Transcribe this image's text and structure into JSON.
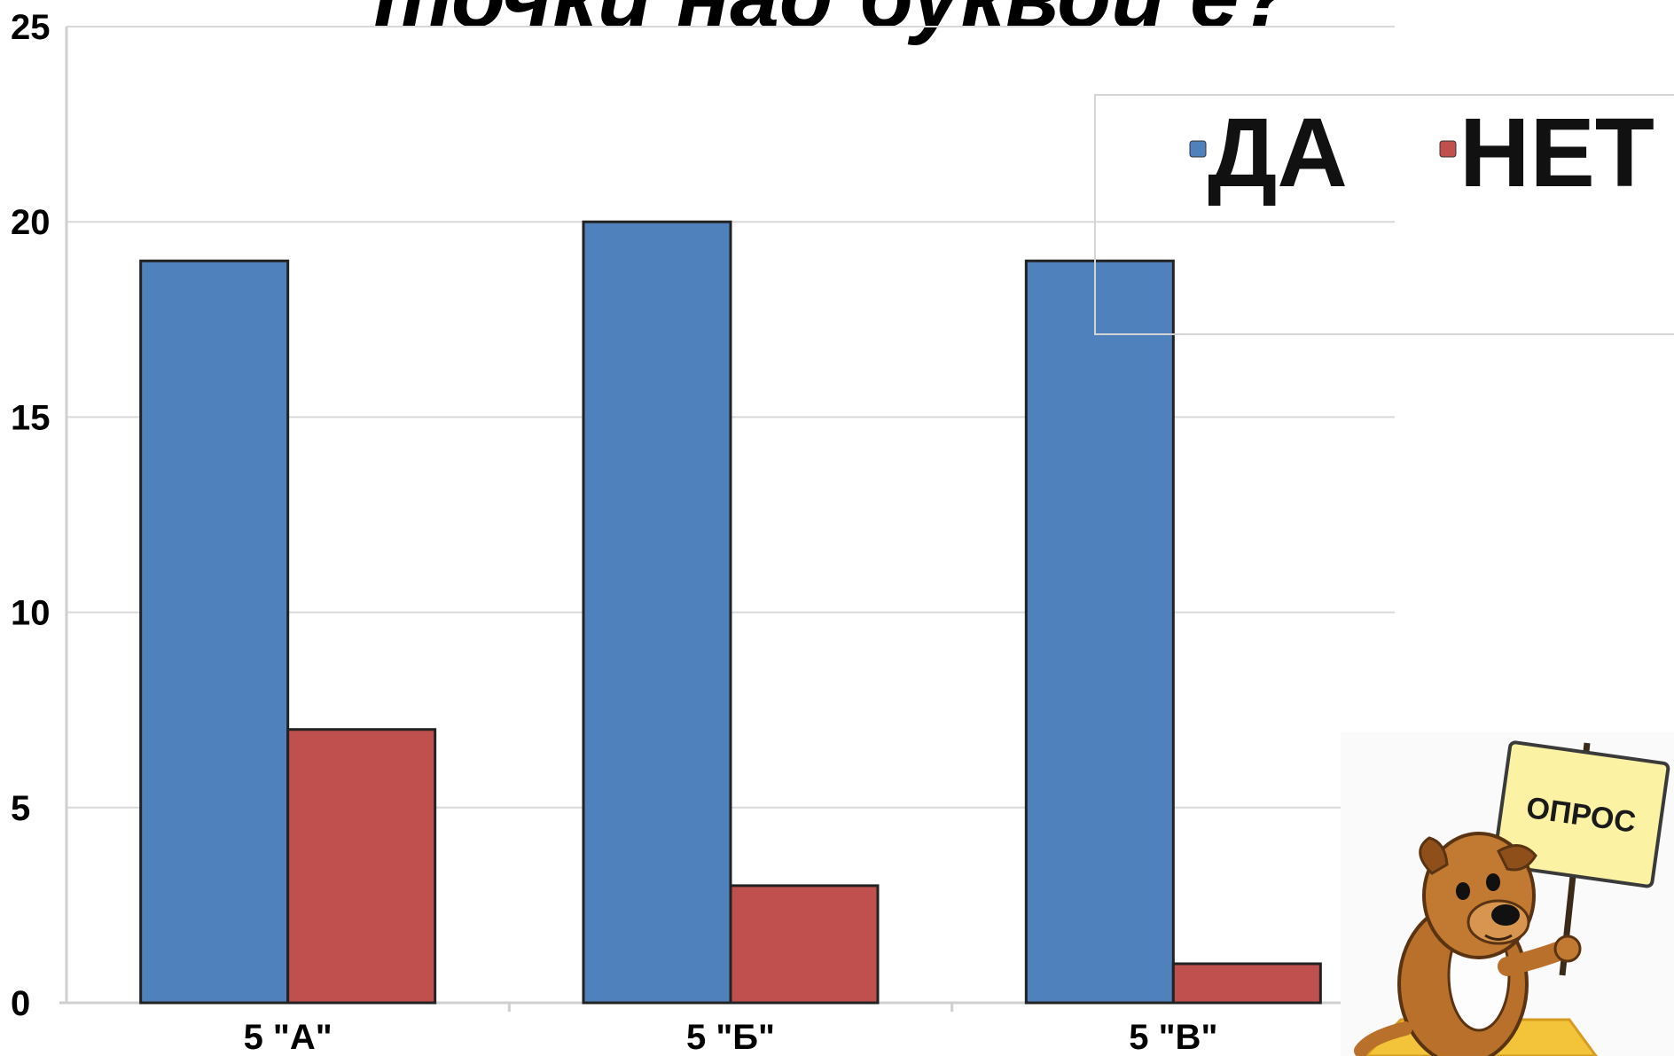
{
  "chart_data": {
    "type": "bar",
    "title": "точки над буквой ё?",
    "categories": [
      "5 \"А\"",
      "5 \"Б\"",
      "5 \"В\""
    ],
    "series": [
      {
        "name": "ДА",
        "color": "#4f81bd",
        "values": [
          19,
          20,
          19
        ]
      },
      {
        "name": "НЕТ",
        "color": "#c0504d",
        "values": [
          7,
          3,
          1
        ]
      }
    ],
    "ylim": [
      0,
      25
    ],
    "yticks": [
      "0",
      "5",
      "10",
      "15",
      "20",
      "25"
    ],
    "xlabel": "",
    "ylabel": "",
    "grid": true,
    "legend_position": "top-right"
  },
  "illustration": {
    "sign_text": "ОПРОС",
    "icon": "dog-holding-sign-icon"
  }
}
